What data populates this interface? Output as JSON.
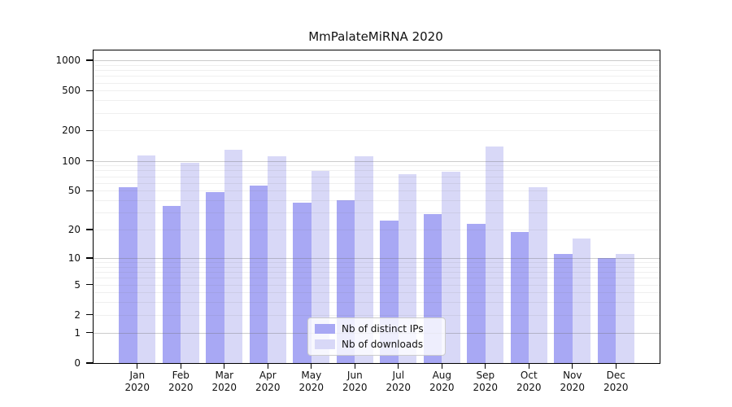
{
  "chart_data": {
    "type": "bar",
    "title": "MmPalateMiRNA 2020",
    "x_year": "2020",
    "categories": [
      "Jan",
      "Feb",
      "Mar",
      "Apr",
      "May",
      "Jun",
      "Jul",
      "Aug",
      "Sep",
      "Oct",
      "Nov",
      "Dec"
    ],
    "series": [
      {
        "name": "Nb of distinct IPs",
        "color": "#a8a8f4",
        "values": [
          54,
          35,
          48,
          56,
          38,
          40,
          25,
          29,
          23,
          19,
          11,
          10
        ]
      },
      {
        "name": "Nb of downloads",
        "color": "#d8d8f7",
        "values": [
          113,
          95,
          128,
          111,
          79,
          110,
          74,
          77,
          139,
          54,
          16,
          11
        ]
      }
    ],
    "y_scale": "log10(1+y)",
    "y_ticks": [
      0,
      1,
      2,
      5,
      10,
      20,
      50,
      100,
      200,
      500,
      1000
    ],
    "ylim": [
      0,
      1250
    ],
    "grid": "horizontal, major at powers of 10, minor at 2-9 per decade",
    "legend_position": "lower center",
    "colors": {
      "distinct_ips": "#a8a8f4",
      "downloads": "#d8d8f7",
      "grid_major": "#c9c9c9",
      "grid_minor": "#f0f0f0"
    }
  }
}
